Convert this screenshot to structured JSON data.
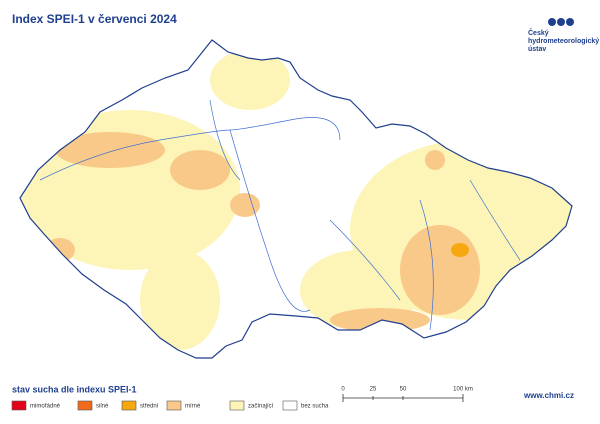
{
  "header": {
    "title": "Index SPEI-1 v červenci 2024",
    "logo": [
      "Český",
      "hydrometeorologický",
      "ústav"
    ]
  },
  "legend": {
    "title": "stav sucha dle indexu SPEI-1",
    "items": [
      {
        "label": "mimořádné",
        "color": "#e3001b"
      },
      {
        "label": "silné",
        "color": "#f26a1b"
      },
      {
        "label": "střední",
        "color": "#f7a70f"
      },
      {
        "label": "mírné",
        "color": "#f9c98a"
      },
      {
        "label": "začínající",
        "color": "#fdf4b8"
      },
      {
        "label": "bez sucha",
        "color": "#ffffff"
      }
    ]
  },
  "scale": {
    "labels": [
      "0",
      "25",
      "50",
      "100 km"
    ]
  },
  "footer": {
    "url": "www.chmi.cz"
  }
}
